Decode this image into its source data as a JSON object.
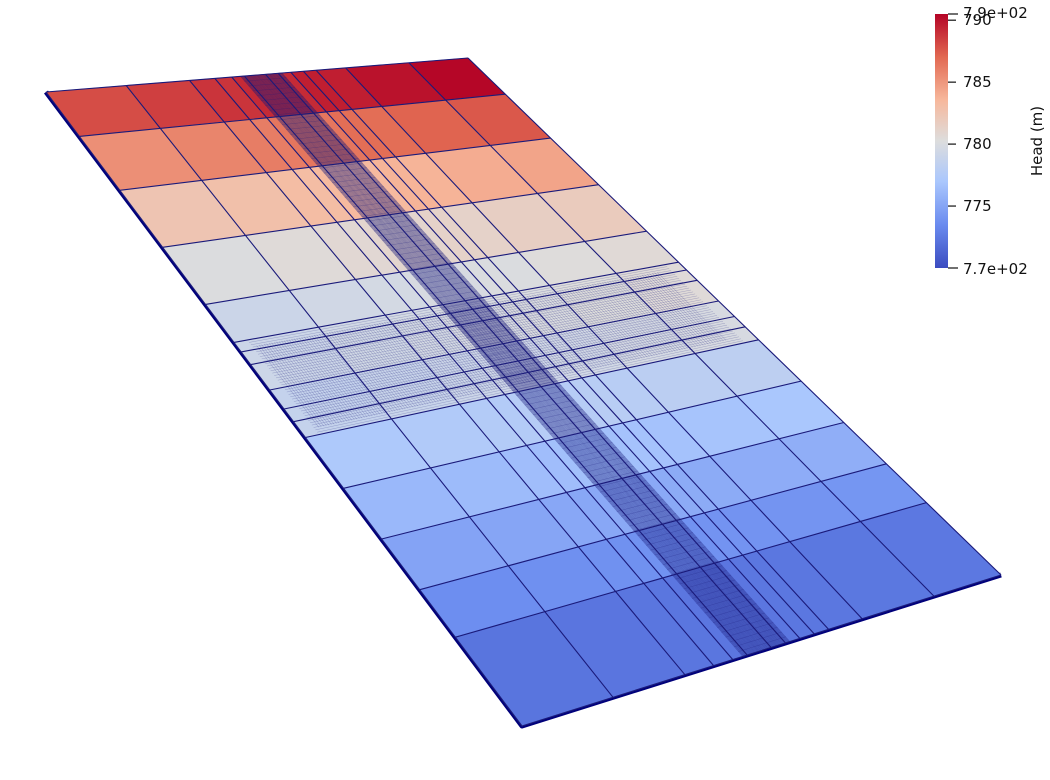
{
  "scalar_bar": {
    "title": "Head (m)",
    "range_min_label": "7.7e+02",
    "range_max_label": "7.9e+02",
    "range": [
      770,
      790.5
    ],
    "ticks": [
      {
        "value": 790,
        "label": "790"
      },
      {
        "value": 785,
        "label": "785"
      },
      {
        "value": 780,
        "label": "780"
      },
      {
        "value": 775,
        "label": "775"
      }
    ],
    "colormap": "coolwarm",
    "colors": [
      "#3b4cc0",
      "#6a8bef",
      "#aac7fd",
      "#dddddd",
      "#f7b89c",
      "#e26952",
      "#b40426"
    ]
  },
  "mesh": {
    "edge_color": "#1a1a7a",
    "side_color": "#00007a",
    "rows": [
      {
        "head": 789.2,
        "refined": false
      },
      {
        "head": 786.5,
        "refined": false
      },
      {
        "head": 783.5,
        "refined": false
      },
      {
        "head": 781.0,
        "refined": false
      },
      {
        "head": 779.8,
        "refined": true
      },
      {
        "head": 779.2,
        "refined": true
      },
      {
        "head": 777.6,
        "refined": false
      },
      {
        "head": 776.4,
        "refined": false
      },
      {
        "head": 775.1,
        "refined": false
      },
      {
        "head": 773.8,
        "refined": false
      },
      {
        "head": 772.3,
        "refined": false
      }
    ]
  }
}
